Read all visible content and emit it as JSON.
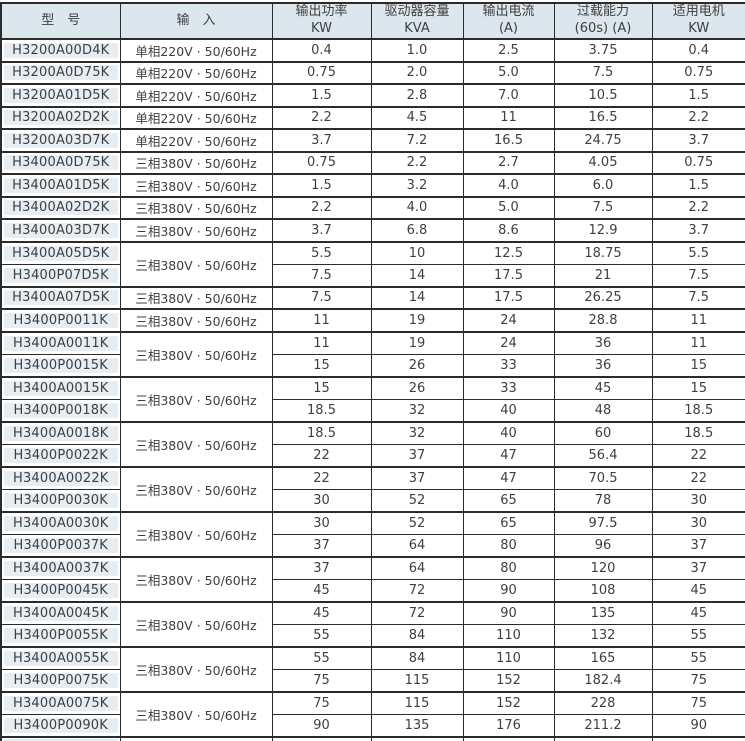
{
  "table": {
    "headers": [
      {
        "title": "型　号",
        "sub": ""
      },
      {
        "title": "输　入",
        "sub": ""
      },
      {
        "title": "输出功率",
        "sub": "KW"
      },
      {
        "title": "驱动器容量",
        "sub": "KVA"
      },
      {
        "title": "输出电流",
        "sub": "(A)"
      },
      {
        "title": "过载能力",
        "sub": "(60s) (A)"
      },
      {
        "title": "适用电机",
        "sub": "KW"
      }
    ],
    "groups": [
      {
        "input": "单相220V · 50/60Hz",
        "rows": [
          {
            "model": "H3200A00D4K",
            "power": "0.4",
            "kva": "1.0",
            "current": "2.5",
            "overload": "3.75",
            "motor": "0.4"
          }
        ]
      },
      {
        "input": "单相220V · 50/60Hz",
        "rows": [
          {
            "model": "H3200A0D75K",
            "power": "0.75",
            "kva": "2.0",
            "current": "5.0",
            "overload": "7.5",
            "motor": "0.75"
          }
        ]
      },
      {
        "input": "单相220V · 50/60Hz",
        "rows": [
          {
            "model": "H3200A01D5K",
            "power": "1.5",
            "kva": "2.8",
            "current": "7.0",
            "overload": "10.5",
            "motor": "1.5"
          }
        ]
      },
      {
        "input": "单相220V · 50/60Hz",
        "rows": [
          {
            "model": "H3200A02D2K",
            "power": "2.2",
            "kva": "4.5",
            "current": "11",
            "overload": "16.5",
            "motor": "2.2"
          }
        ]
      },
      {
        "input": "单相220V · 50/60Hz",
        "rows": [
          {
            "model": "H3200A03D7K",
            "power": "3.7",
            "kva": "7.2",
            "current": "16.5",
            "overload": "24.75",
            "motor": "3.7"
          }
        ]
      },
      {
        "input": "三相380V · 50/60Hz",
        "rows": [
          {
            "model": "H3400A0D75K",
            "power": "0.75",
            "kva": "2.2",
            "current": "2.7",
            "overload": "4.05",
            "motor": "0.75"
          }
        ]
      },
      {
        "input": "三相380V · 50/60Hz",
        "rows": [
          {
            "model": "H3400A01D5K",
            "power": "1.5",
            "kva": "3.2",
            "current": "4.0",
            "overload": "6.0",
            "motor": "1.5"
          }
        ]
      },
      {
        "input": "三相380V · 50/60Hz",
        "rows": [
          {
            "model": "H3400A02D2K",
            "power": "2.2",
            "kva": "4.0",
            "current": "5.0",
            "overload": "7.5",
            "motor": "2.2"
          }
        ]
      },
      {
        "input": "三相380V · 50/60Hz",
        "rows": [
          {
            "model": "H3400A03D7K",
            "power": "3.7",
            "kva": "6.8",
            "current": "8.6",
            "overload": "12.9",
            "motor": "3.7"
          }
        ]
      },
      {
        "input": "三相380V · 50/60Hz",
        "rows": [
          {
            "model": "H3400A05D5K",
            "power": "5.5",
            "kva": "10",
            "current": "12.5",
            "overload": "18.75",
            "motor": "5.5"
          },
          {
            "model": "H3400P07D5K",
            "power": "7.5",
            "kva": "14",
            "current": "17.5",
            "overload": "21",
            "motor": "7.5"
          }
        ]
      },
      {
        "input": "三相380V · 50/60Hz",
        "rows": [
          {
            "model": "H3400A07D5K",
            "power": "7.5",
            "kva": "14",
            "current": "17.5",
            "overload": "26.25",
            "motor": "7.5"
          }
        ]
      },
      {
        "input": "三相380V · 50/60Hz",
        "rows": [
          {
            "model": "H3400P0011K",
            "power": "11",
            "kva": "19",
            "current": "24",
            "overload": "28.8",
            "motor": "11"
          }
        ]
      },
      {
        "input": "三相380V · 50/60Hz",
        "rows": [
          {
            "model": "H3400A0011K",
            "power": "11",
            "kva": "19",
            "current": "24",
            "overload": "36",
            "motor": "11"
          },
          {
            "model": "H3400P0015K",
            "power": "15",
            "kva": "26",
            "current": "33",
            "overload": "36",
            "motor": "15"
          }
        ]
      },
      {
        "input": "三相380V · 50/60Hz",
        "rows": [
          {
            "model": "H3400A0015K",
            "power": "15",
            "kva": "26",
            "current": "33",
            "overload": "45",
            "motor": "15"
          },
          {
            "model": "H3400P0018K",
            "power": "18.5",
            "kva": "32",
            "current": "40",
            "overload": "48",
            "motor": "18.5"
          }
        ]
      },
      {
        "input": "三相380V · 50/60Hz",
        "rows": [
          {
            "model": "H3400A0018K",
            "power": "18.5",
            "kva": "32",
            "current": "40",
            "overload": "60",
            "motor": "18.5"
          },
          {
            "model": "H3400P0022K",
            "power": "22",
            "kva": "37",
            "current": "47",
            "overload": "56.4",
            "motor": "22"
          }
        ]
      },
      {
        "input": "三相380V · 50/60Hz",
        "rows": [
          {
            "model": "H3400A0022K",
            "power": "22",
            "kva": "37",
            "current": "47",
            "overload": "70.5",
            "motor": "22"
          },
          {
            "model": "H3400P0030K",
            "power": "30",
            "kva": "52",
            "current": "65",
            "overload": "78",
            "motor": "30"
          }
        ]
      },
      {
        "input": "三相380V · 50/60Hz",
        "rows": [
          {
            "model": "H3400A0030K",
            "power": "30",
            "kva": "52",
            "current": "65",
            "overload": "97.5",
            "motor": "30"
          },
          {
            "model": "H3400P0037K",
            "power": "37",
            "kva": "64",
            "current": "80",
            "overload": "96",
            "motor": "37"
          }
        ]
      },
      {
        "input": "三相380V · 50/60Hz",
        "rows": [
          {
            "model": "H3400A0037K",
            "power": "37",
            "kva": "64",
            "current": "80",
            "overload": "120",
            "motor": "37"
          },
          {
            "model": "H3400P0045K",
            "power": "45",
            "kva": "72",
            "current": "90",
            "overload": "108",
            "motor": "45"
          }
        ]
      },
      {
        "input": "三相380V · 50/60Hz",
        "rows": [
          {
            "model": "H3400A0045K",
            "power": "45",
            "kva": "72",
            "current": "90",
            "overload": "135",
            "motor": "45"
          },
          {
            "model": "H3400P0055K",
            "power": "55",
            "kva": "84",
            "current": "110",
            "overload": "132",
            "motor": "55"
          }
        ]
      },
      {
        "input": "三相380V · 50/60Hz",
        "rows": [
          {
            "model": "H3400A0055K",
            "power": "55",
            "kva": "84",
            "current": "110",
            "overload": "165",
            "motor": "55"
          },
          {
            "model": "H3400P0075K",
            "power": "75",
            "kva": "115",
            "current": "152",
            "overload": "182.4",
            "motor": "75"
          }
        ]
      },
      {
        "input": "三相380V · 50/60Hz",
        "rows": [
          {
            "model": "H3400A0075K",
            "power": "75",
            "kva": "115",
            "current": "152",
            "overload": "228",
            "motor": "75"
          },
          {
            "model": "H3400P0090K",
            "power": "90",
            "kva": "135",
            "current": "176",
            "overload": "211.2",
            "motor": "90"
          }
        ]
      }
    ],
    "colors": {
      "header_bg": "#dce6ed",
      "model_bg": "#e6eef4",
      "border": "#2b2b2b",
      "text": "#3f3f3f"
    }
  }
}
